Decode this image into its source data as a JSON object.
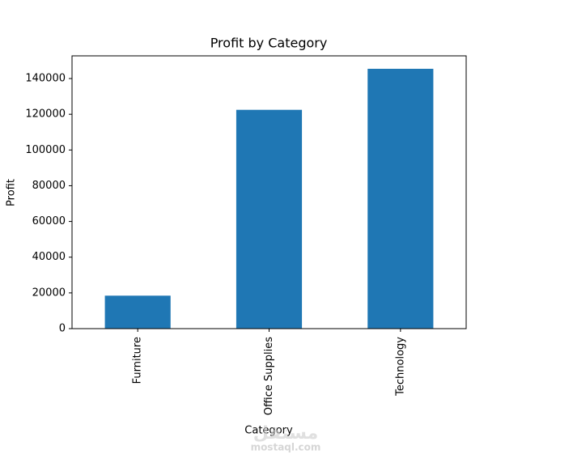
{
  "chart_data": {
    "type": "bar",
    "title": "Profit by Category",
    "x_label": "Category",
    "y_label": "Profit",
    "categories": [
      "Furniture",
      "Office Supplies",
      "Technology"
    ],
    "values": [
      18451,
      122491,
      145455
    ],
    "color": "#1f77b4",
    "ylim": [
      0,
      152700
    ],
    "yticks": [
      0,
      20000,
      40000,
      60000,
      80000,
      100000,
      120000,
      140000
    ],
    "grid": false
  },
  "watermark": {
    "arabic": "مستقل",
    "site": "mostaql.com"
  }
}
